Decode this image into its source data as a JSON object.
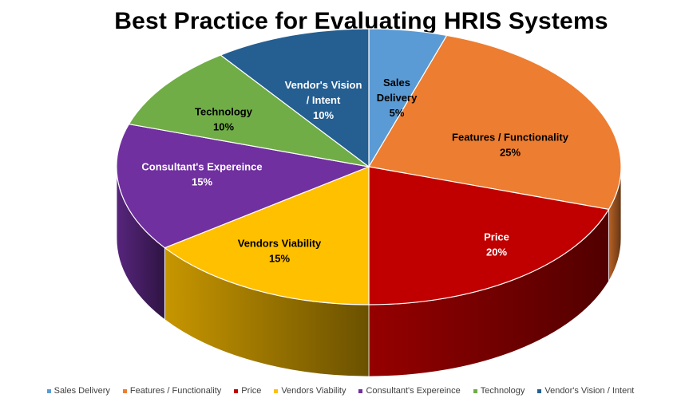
{
  "chart_data": {
    "type": "pie",
    "title": "Best Practice for Evaluating HRIS Systems",
    "categories": [
      "Sales Delivery",
      "Features / Functionality",
      "Price",
      "Vendors Viability",
      "Consultant's Expereince",
      "Technology",
      "Vendor's Vision / Intent"
    ],
    "values": [
      5,
      25,
      20,
      15,
      15,
      10,
      10
    ],
    "value_labels": [
      "5%",
      "25%",
      "20%",
      "15%",
      "15%",
      "10%",
      "10%"
    ],
    "label_lines": [
      [
        "Sales",
        "Delivery",
        "5%"
      ],
      [
        "Features / Functionality",
        "25%"
      ],
      [
        "Price",
        "20%"
      ],
      [
        "Vendors Viability",
        "15%"
      ],
      [
        "Consultant's Expereince",
        "15%"
      ],
      [
        "Technology",
        "10%"
      ],
      [
        "Vendor's Vision",
        "/ Intent",
        "10%"
      ]
    ],
    "colors": [
      "#5B9BD5",
      "#ED7D31",
      "#C00000",
      "#FFC000",
      "#7030A0",
      "#70AD47",
      "#255E91"
    ],
    "legend_position": "bottom",
    "style": "3d-pie"
  }
}
